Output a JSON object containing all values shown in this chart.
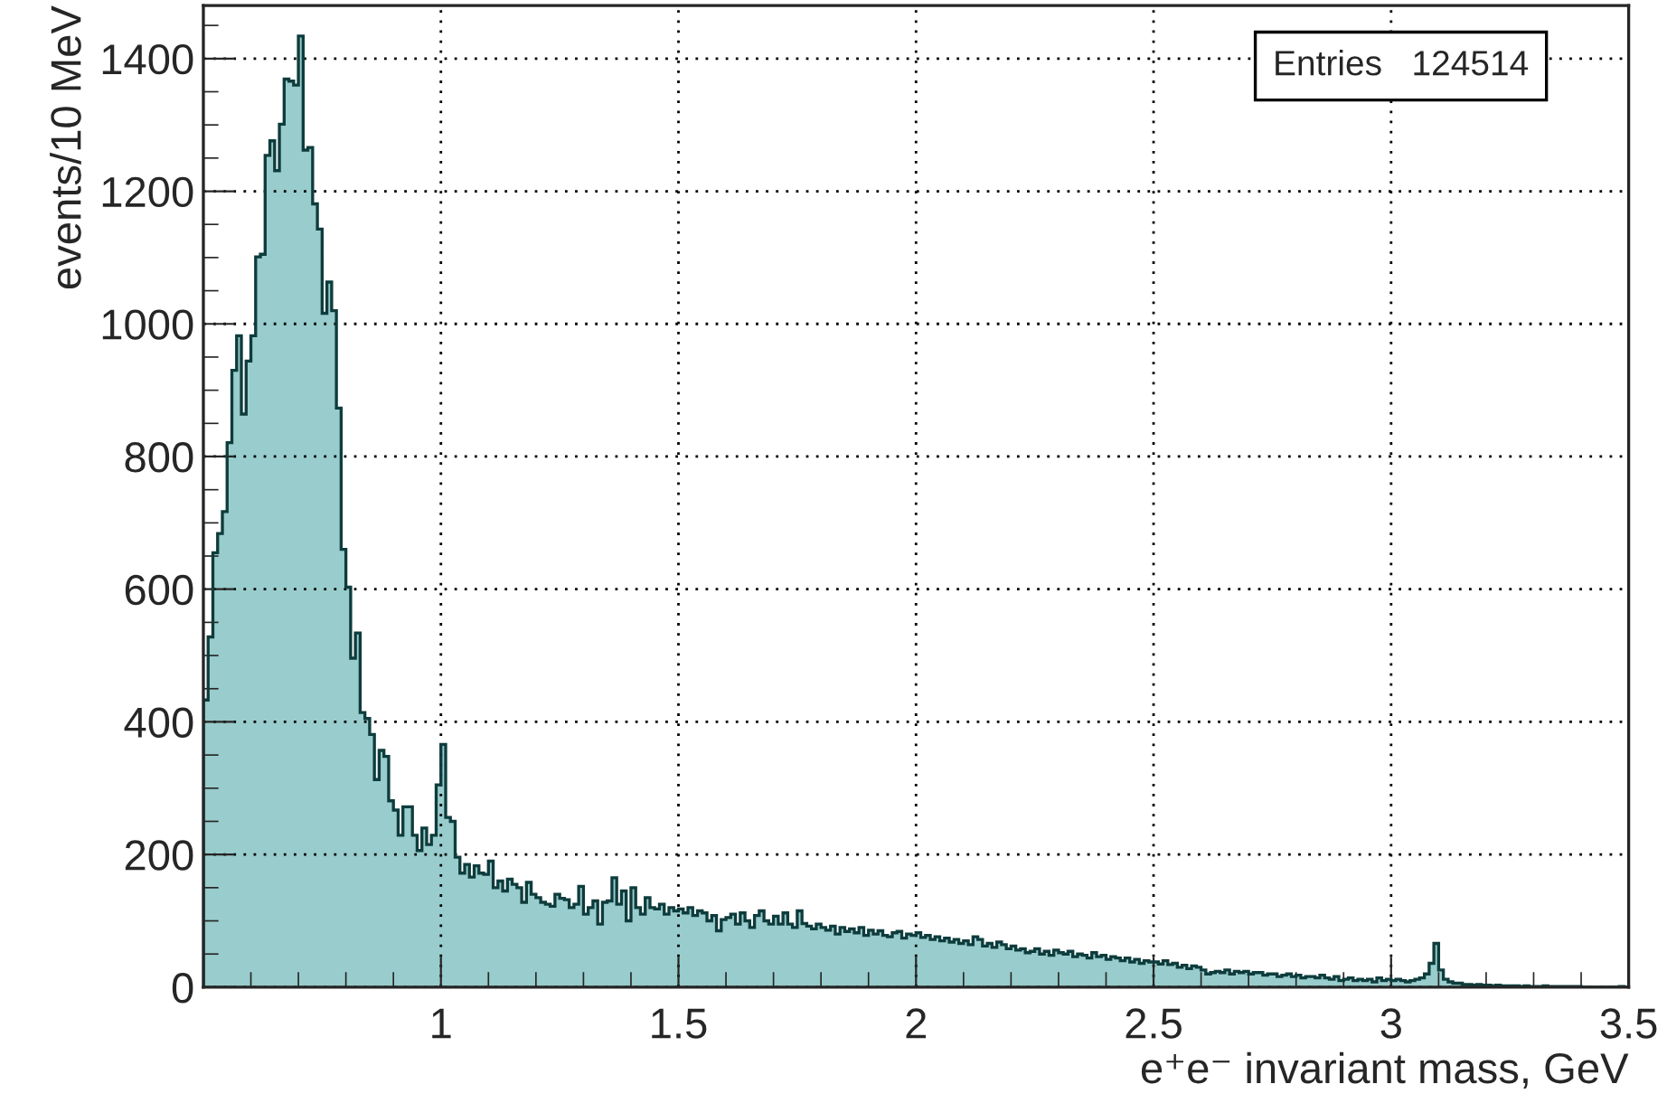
{
  "chart_data": {
    "type": "histogram",
    "xlabel": "e⁺e⁻ invariant mass, GeV",
    "ylabel": "events/10 MeV",
    "annotations": [
      "Entries   124514"
    ],
    "color": "#99cccc",
    "bins": [
      0.5,
      0.51,
      0.52,
      0.53,
      0.54,
      0.55,
      0.56,
      0.57,
      0.58,
      0.59,
      0.6,
      0.61,
      0.62,
      0.63,
      0.64,
      0.65,
      0.66,
      0.67,
      0.68,
      0.69,
      0.7,
      0.71,
      0.72,
      0.73,
      0.74,
      0.75,
      0.76,
      0.77,
      0.78,
      0.79,
      0.8,
      0.81,
      0.82,
      0.83,
      0.84,
      0.85,
      0.86,
      0.87,
      0.88,
      0.89,
      0.9,
      0.91,
      0.92,
      0.93,
      0.94,
      0.95,
      0.96,
      0.97,
      0.98,
      0.99,
      1.0,
      1.01,
      1.02,
      1.03,
      1.04,
      1.05,
      1.06,
      1.07,
      1.08,
      1.09,
      1.1,
      1.11,
      1.12,
      1.13,
      1.14,
      1.15,
      1.16,
      1.17,
      1.18,
      1.19,
      1.2,
      1.21,
      1.22,
      1.23,
      1.24,
      1.25,
      1.26,
      1.27,
      1.28,
      1.29,
      1.3,
      1.31,
      1.32,
      1.33,
      1.34,
      1.35,
      1.36,
      1.37,
      1.38,
      1.39,
      1.4,
      1.41,
      1.42,
      1.43,
      1.44,
      1.45,
      1.46,
      1.47,
      1.48,
      1.49,
      1.5,
      1.51,
      1.52,
      1.53,
      1.54,
      1.55,
      1.56,
      1.57,
      1.58,
      1.59,
      1.6,
      1.61,
      1.62,
      1.63,
      1.64,
      1.65,
      1.66,
      1.67,
      1.68,
      1.69,
      1.7,
      1.71,
      1.72,
      1.73,
      1.74,
      1.75,
      1.76,
      1.77,
      1.78,
      1.79,
      1.8,
      1.81,
      1.82,
      1.83,
      1.84,
      1.85,
      1.86,
      1.87,
      1.88,
      1.89,
      1.9,
      1.91,
      1.92,
      1.93,
      1.94,
      1.95,
      1.96,
      1.97,
      1.98,
      1.99,
      2.0,
      2.01,
      2.02,
      2.03,
      2.04,
      2.05,
      2.06,
      2.07,
      2.08,
      2.09,
      2.1,
      2.11,
      2.12,
      2.13,
      2.14,
      2.15,
      2.16,
      2.17,
      2.18,
      2.19,
      2.2,
      2.21,
      2.22,
      2.23,
      2.24,
      2.25,
      2.26,
      2.27,
      2.28,
      2.29,
      2.3,
      2.31,
      2.32,
      2.33,
      2.34,
      2.35,
      2.36,
      2.37,
      2.38,
      2.39,
      2.4,
      2.41,
      2.42,
      2.43,
      2.44,
      2.45,
      2.46,
      2.47,
      2.48,
      2.49,
      2.5,
      2.51,
      2.52,
      2.53,
      2.54,
      2.55,
      2.56,
      2.57,
      2.58,
      2.59,
      2.6,
      2.61,
      2.62,
      2.63,
      2.64,
      2.65,
      2.66,
      2.67,
      2.68,
      2.69,
      2.7,
      2.71,
      2.72,
      2.73,
      2.74,
      2.75,
      2.76,
      2.77,
      2.78,
      2.79,
      2.8,
      2.81,
      2.82,
      2.83,
      2.84,
      2.85,
      2.86,
      2.87,
      2.88,
      2.89,
      2.9,
      2.91,
      2.92,
      2.93,
      2.94,
      2.95,
      2.96,
      2.97,
      2.98,
      2.99,
      3.0,
      3.01,
      3.02,
      3.03,
      3.04,
      3.05,
      3.06,
      3.07,
      3.08,
      3.09,
      3.1,
      3.11,
      3.12,
      3.13,
      3.14,
      3.15,
      3.16,
      3.17,
      3.18,
      3.19,
      3.2,
      3.21,
      3.22,
      3.23,
      3.24,
      3.25,
      3.26,
      3.27,
      3.28,
      3.29,
      3.3,
      3.31,
      3.32,
      3.33,
      3.34,
      3.35,
      3.36,
      3.37,
      3.38,
      3.39,
      3.4,
      3.41,
      3.42,
      3.43,
      3.44,
      3.45,
      3.46,
      3.47,
      3.48,
      3.49,
      3.5
    ],
    "values": [
      433,
      528,
      655,
      684,
      717,
      821,
      930,
      982,
      864,
      944,
      982,
      1101,
      1105,
      1254,
      1276,
      1231,
      1301,
      1369,
      1366,
      1360,
      1434,
      1262,
      1266,
      1181,
      1143,
      1016,
      1063,
      1020,
      873,
      660,
      603,
      496,
      534,
      414,
      405,
      381,
      313,
      357,
      348,
      281,
      267,
      229,
      272,
      272,
      229,
      206,
      240,
      215,
      229,
      305,
      366,
      256,
      250,
      196,
      172,
      185,
      166,
      183,
      172,
      170,
      190,
      150,
      160,
      145,
      163,
      155,
      150,
      128,
      158,
      140,
      135,
      128,
      125,
      122,
      140,
      134,
      132,
      120,
      125,
      152,
      110,
      120,
      130,
      95,
      128,
      130,
      165,
      125,
      145,
      100,
      150,
      120,
      110,
      135,
      120,
      118,
      125,
      110,
      120,
      115,
      118,
      112,
      120,
      108,
      115,
      112,
      100,
      108,
      85,
      102,
      105,
      110,
      95,
      112,
      100,
      90,
      108,
      115,
      100,
      95,
      107,
      95,
      112,
      95,
      90,
      115,
      96,
      92,
      88,
      95,
      90,
      86,
      92,
      80,
      90,
      84,
      88,
      82,
      90,
      78,
      86,
      80,
      85,
      78,
      76,
      82,
      84,
      74,
      80,
      78,
      82,
      75,
      78,
      72,
      76,
      70,
      74,
      68,
      72,
      66,
      70,
      64,
      76,
      72,
      62,
      66,
      60,
      68,
      64,
      58,
      62,
      56,
      58,
      52,
      54,
      58,
      50,
      54,
      48,
      56,
      52,
      50,
      54,
      46,
      50,
      48,
      44,
      52,
      46,
      48,
      42,
      46,
      44,
      40,
      44,
      38,
      42,
      36,
      40,
      38,
      38,
      35,
      40,
      34,
      36,
      30,
      33,
      28,
      32,
      30,
      26,
      20,
      22,
      24,
      22,
      26,
      20,
      24,
      22,
      24,
      20,
      22,
      22,
      18,
      20,
      20,
      16,
      18,
      20,
      16,
      18,
      14,
      16,
      16,
      14,
      18,
      14,
      12,
      16,
      10,
      12,
      14,
      10,
      12,
      10,
      12,
      8,
      14,
      10,
      12,
      10,
      12,
      10,
      8,
      10,
      12,
      14,
      20,
      36,
      66,
      26,
      12,
      8,
      6,
      6,
      4,
      4,
      3,
      4,
      3,
      3,
      2,
      3,
      2,
      2,
      2,
      2,
      1,
      2,
      1,
      1,
      1,
      2,
      1,
      1,
      1,
      1,
      1,
      1,
      1,
      0,
      0,
      0,
      0,
      0,
      0,
      0,
      0,
      1,
      0
    ],
    "xlim": [
      0.5,
      3.5
    ],
    "ylim": [
      0,
      1480
    ],
    "xticks": [
      1,
      1.5,
      2,
      2.5,
      3,
      3.5
    ],
    "yticks": [
      0,
      200,
      400,
      600,
      800,
      1000,
      1200,
      1400
    ],
    "grid": true,
    "legend": false
  }
}
